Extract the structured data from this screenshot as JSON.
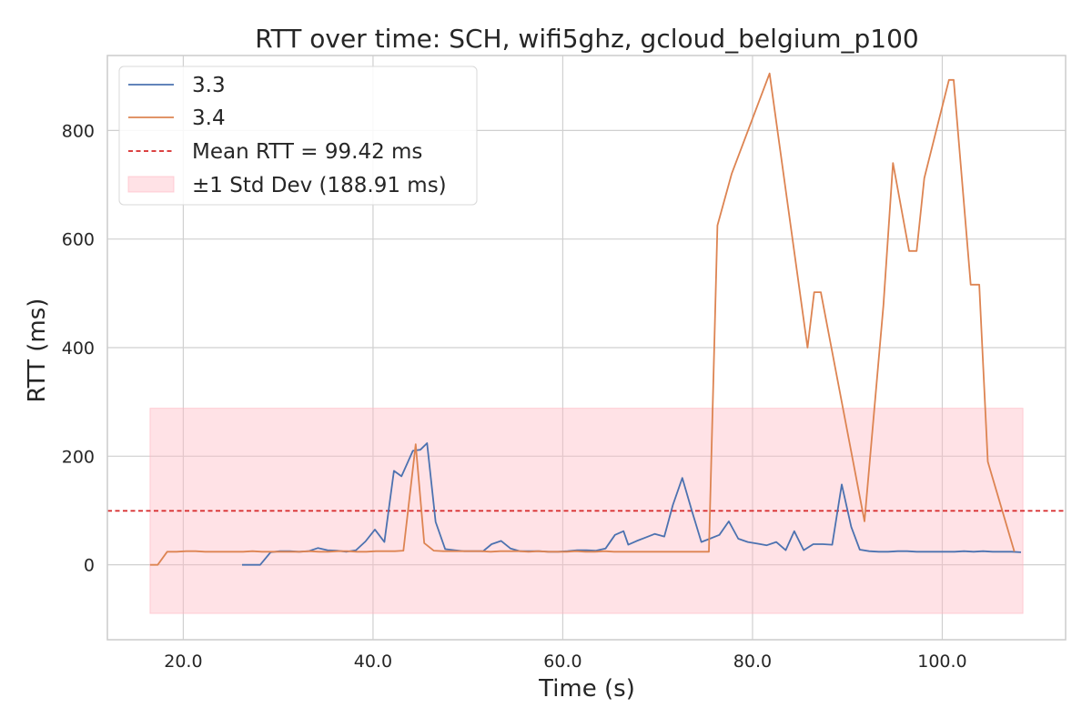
{
  "chart_data": {
    "type": "line",
    "title": "RTT over time: SCH, wifi5ghz, gcloud_belgium_p100",
    "xlabel": "Time (s)",
    "ylabel": "RTT (ms)",
    "xlim": [
      12,
      113
    ],
    "ylim": [
      -138,
      938
    ],
    "xticks": [
      20,
      40,
      60,
      80,
      100
    ],
    "xtick_labels": [
      "20.0",
      "40.0",
      "60.0",
      "80.0",
      "100.0"
    ],
    "yticks": [
      0,
      200,
      400,
      600,
      800
    ],
    "ytick_labels": [
      "0",
      "200",
      "400",
      "600",
      "800"
    ],
    "grid": true,
    "legend_position": "top-left",
    "colors": {
      "series_3_3": "#4c72b0",
      "series_3_4": "#dd8452",
      "mean_line": "#d62728",
      "std_band": "#ffb6c1",
      "grid": "#d0d0d0",
      "frame": "#cccccc"
    },
    "mean": {
      "label": "Mean RTT = 99.42 ms",
      "value": 99.42
    },
    "std_band": {
      "label": "±1 Std Dev (188.91 ms)",
      "low": -89.49,
      "high": 288.33,
      "x_start": 16.5,
      "x_end": 108.5
    },
    "series": [
      {
        "name": "3.3",
        "x": [
          26.2,
          28.1,
          29.2,
          30.2,
          31.2,
          32.2,
          33.2,
          34.2,
          35.2,
          36.2,
          37.2,
          38.2,
          39.2,
          40.2,
          41.2,
          42.2,
          43.0,
          44.2,
          45.0,
          45.7,
          46.6,
          47.6,
          48.6,
          49.6,
          50.6,
          51.6,
          52.5,
          53.5,
          54.5,
          55.5,
          56.5,
          57.5,
          58.5,
          59.5,
          60.5,
          61.5,
          62.5,
          63.5,
          64.5,
          65.5,
          66.4,
          66.9,
          67.8,
          68.7,
          69.7,
          70.7,
          71.6,
          72.6,
          73.6,
          74.6,
          75.5,
          76.5,
          77.5,
          78.5,
          79.5,
          80.5,
          81.5,
          82.5,
          83.5,
          84.4,
          85.4,
          86.4,
          87.4,
          88.4,
          89.4,
          90.4,
          91.3,
          92.3,
          93.3,
          94.3,
          95.3,
          96.3,
          97.3,
          98.3,
          99.3,
          100.3,
          101.3,
          102.3,
          103.3,
          104.3,
          105.3,
          106.3,
          107.3,
          108.3
        ],
        "values": [
          0,
          0,
          23,
          25,
          25,
          24,
          25,
          31,
          27,
          26,
          24,
          27,
          43,
          65,
          42,
          173,
          163,
          210,
          212,
          224,
          79,
          29,
          27,
          25,
          25,
          25,
          38,
          44,
          30,
          25,
          25,
          25,
          24,
          24,
          25,
          27,
          27,
          26,
          30,
          55,
          62,
          37,
          44,
          50,
          57,
          52,
          110,
          160,
          100,
          42,
          48,
          55,
          80,
          48,
          42,
          39,
          36,
          42,
          27,
          62,
          27,
          38,
          38,
          37,
          148,
          70,
          28,
          25,
          24,
          24,
          25,
          25,
          24,
          24,
          24,
          24,
          24,
          25,
          24,
          25,
          24,
          24,
          24,
          23
        ]
      },
      {
        "name": "3.4",
        "x": [
          16.5,
          17.3,
          18.3,
          19.3,
          20.3,
          21.3,
          22.3,
          23.3,
          24.3,
          25.3,
          26.3,
          27.3,
          28.3,
          29.3,
          30.3,
          31.3,
          32.3,
          33.3,
          34.3,
          35.3,
          36.3,
          37.3,
          38.3,
          39.3,
          40.3,
          41.3,
          42.3,
          43.2,
          44.5,
          45.4,
          46.4,
          47.4,
          48.4,
          49.4,
          50.4,
          51.4,
          52.4,
          53.4,
          54.4,
          55.4,
          56.4,
          57.4,
          58.4,
          59.4,
          60.4,
          61.4,
          62.4,
          63.4,
          64.4,
          65.4,
          66.4,
          67.4,
          68.4,
          69.4,
          70.4,
          71.4,
          72.4,
          73.4,
          74.4,
          75.4,
          76.3,
          77.8,
          81.8,
          85.8,
          86.5,
          87.2,
          91.8,
          93.8,
          94.8,
          96.5,
          97.3,
          98.1,
          100.7,
          101.2,
          103.0,
          103.9,
          104.8,
          107.6
        ],
        "values": [
          0,
          0,
          24,
          24,
          25,
          25,
          24,
          24,
          24,
          24,
          24,
          25,
          24,
          24,
          24,
          24,
          24,
          25,
          24,
          24,
          25,
          25,
          24,
          24,
          25,
          25,
          25,
          26,
          222,
          40,
          26,
          25,
          25,
          25,
          25,
          25,
          24,
          25,
          25,
          25,
          24,
          25,
          24,
          24,
          24,
          25,
          24,
          24,
          25,
          24,
          24,
          24,
          24,
          24,
          24,
          24,
          24,
          24,
          24,
          24,
          625,
          720,
          905,
          400,
          502,
          502,
          80,
          478,
          740,
          578,
          578,
          712,
          893,
          893,
          516,
          516,
          190,
          24
        ]
      }
    ]
  }
}
